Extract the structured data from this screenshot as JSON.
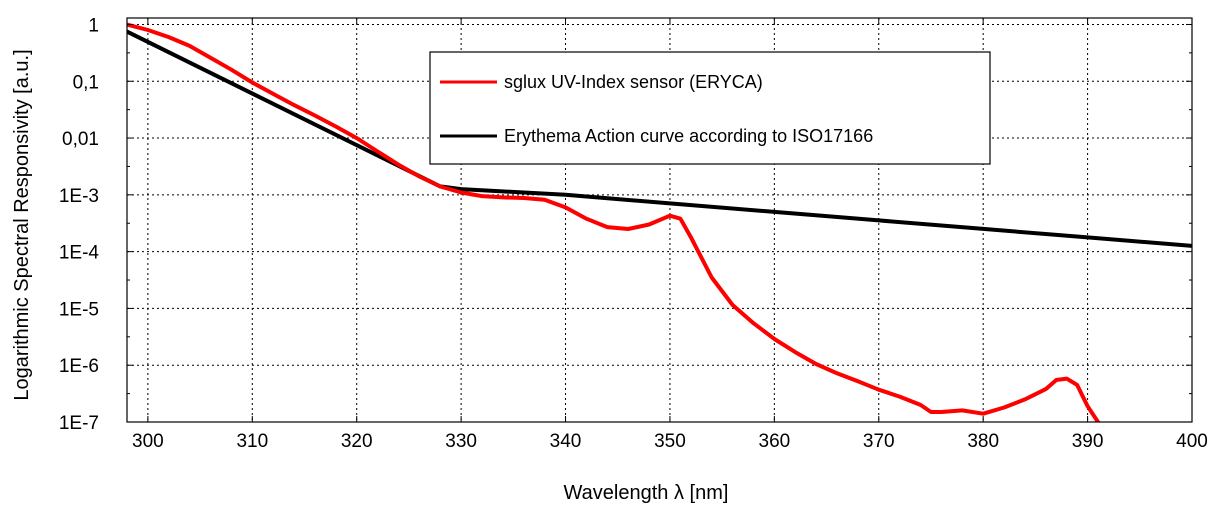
{
  "chart_data": {
    "type": "line",
    "xlabel": "Wavelength λ [nm]",
    "ylabel": "Logarithmic Spectral Responsivity [a.u.]",
    "x_scale": "linear",
    "y_scale": "log",
    "xlim": [
      298,
      400
    ],
    "ylim": [
      1e-07,
      1.3
    ],
    "grid": true,
    "legend_position": "top-center",
    "x_ticks": [
      300,
      310,
      320,
      330,
      340,
      350,
      360,
      370,
      380,
      390,
      400
    ],
    "x_tick_labels": [
      "300",
      "310",
      "320",
      "330",
      "340",
      "350",
      "360",
      "370",
      "380",
      "390",
      "400"
    ],
    "y_ticks": [
      1e-07,
      1e-06,
      1e-05,
      0.0001,
      0.001,
      0.01,
      0.1,
      1
    ],
    "y_tick_labels": [
      "1E-7",
      "1E-6",
      "1E-5",
      "1E-4",
      "1E-3",
      "0,01",
      "0,1",
      "1"
    ],
    "series": [
      {
        "name": "sglux UV-Index sensor (ERYCA)",
        "color": "#ff0000",
        "x": [
          298,
          300,
          302,
          304,
          306,
          308,
          310,
          312,
          314,
          316,
          318,
          320,
          322,
          324,
          326,
          328,
          330,
          332,
          334,
          336,
          338,
          340,
          342,
          344,
          346,
          348,
          350,
          351,
          352,
          354,
          356,
          358,
          360,
          362,
          364,
          366,
          368,
          370,
          372,
          374,
          375,
          376,
          378,
          380,
          382,
          384,
          386,
          387,
          388,
          389,
          390,
          391
        ],
        "y": [
          1.0,
          0.8,
          0.6,
          0.42,
          0.26,
          0.16,
          0.095,
          0.06,
          0.038,
          0.025,
          0.016,
          0.01,
          0.0058,
          0.0034,
          0.0021,
          0.0014,
          0.0011,
          0.00095,
          0.0009,
          0.00088,
          0.00082,
          0.0006,
          0.00038,
          0.00027,
          0.00025,
          0.0003,
          0.00043,
          0.00038,
          0.00018,
          3.5e-05,
          1.15e-05,
          5.5e-06,
          2.9e-06,
          1.7e-06,
          1.05e-06,
          7.2e-07,
          5.2e-07,
          3.7e-07,
          2.8e-07,
          2e-07,
          1.5e-07,
          1.5e-07,
          1.6e-07,
          1.4e-07,
          1.8e-07,
          2.5e-07,
          3.8e-07,
          5.5e-07,
          5.8e-07,
          4.5e-07,
          1.9e-07,
          1e-07
        ]
      },
      {
        "name": "Erythema Action curve according to ISO17166",
        "color": "#000000",
        "x": [
          298,
          328,
          330,
          340,
          350,
          360,
          370,
          380,
          390,
          400
        ],
        "y": [
          0.75,
          0.00141,
          0.00126,
          0.001,
          0.000708,
          0.000501,
          0.000355,
          0.000251,
          0.000178,
          0.000126
        ]
      }
    ]
  }
}
